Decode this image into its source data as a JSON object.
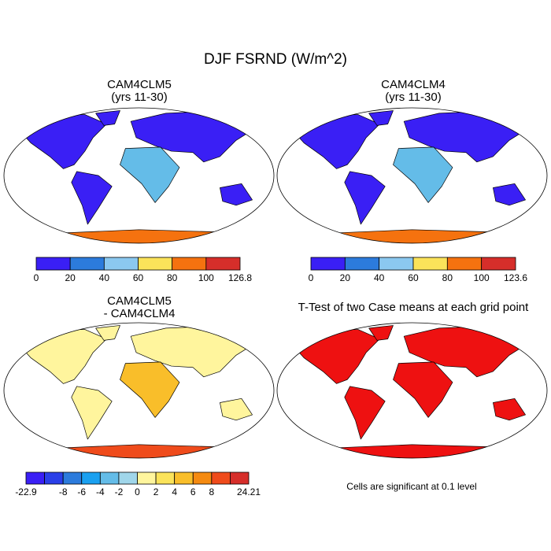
{
  "title": "DJF FSRND (W/m^2)",
  "panels": [
    {
      "title": "CAM4CLM5",
      "subtitle": "(yrs 11-30)",
      "colorbar": {
        "labels": [
          0,
          20,
          40,
          60,
          80,
          100,
          126.8
        ],
        "colors": [
          "#3a1ff5",
          "#2c7bdc",
          "#8bc8f0",
          "#fbe35a",
          "#f5720f",
          "#d62e2a"
        ]
      }
    },
    {
      "title": "CAM4CLM4",
      "subtitle": "(yrs 11-30)",
      "colorbar": {
        "labels": [
          0,
          20,
          40,
          60,
          80,
          100,
          123.6
        ],
        "colors": [
          "#3a1ff5",
          "#2c7bdc",
          "#8bc8f0",
          "#fbe35a",
          "#f5720f",
          "#d62e2a"
        ]
      }
    },
    {
      "title": "CAM4CLM5",
      "subtitle": "- CAM4CLM4",
      "colorbar": {
        "labels": [
          -22.9,
          -8,
          -6,
          -4,
          -2,
          0,
          2,
          4,
          6,
          8,
          24.21
        ],
        "colors": [
          "#3a1ff5",
          "#2a3fe8",
          "#2c7bdc",
          "#1aa0f0",
          "#64bce8",
          "#a0d6ea",
          "#fff59d",
          "#fbe35a",
          "#f9be2a",
          "#f58a10",
          "#ef4b1b",
          "#d62e2a"
        ]
      }
    },
    {
      "title": "T-Test of two Case means at each grid point",
      "note": "Cells are significant at 0.1 level"
    }
  ]
}
